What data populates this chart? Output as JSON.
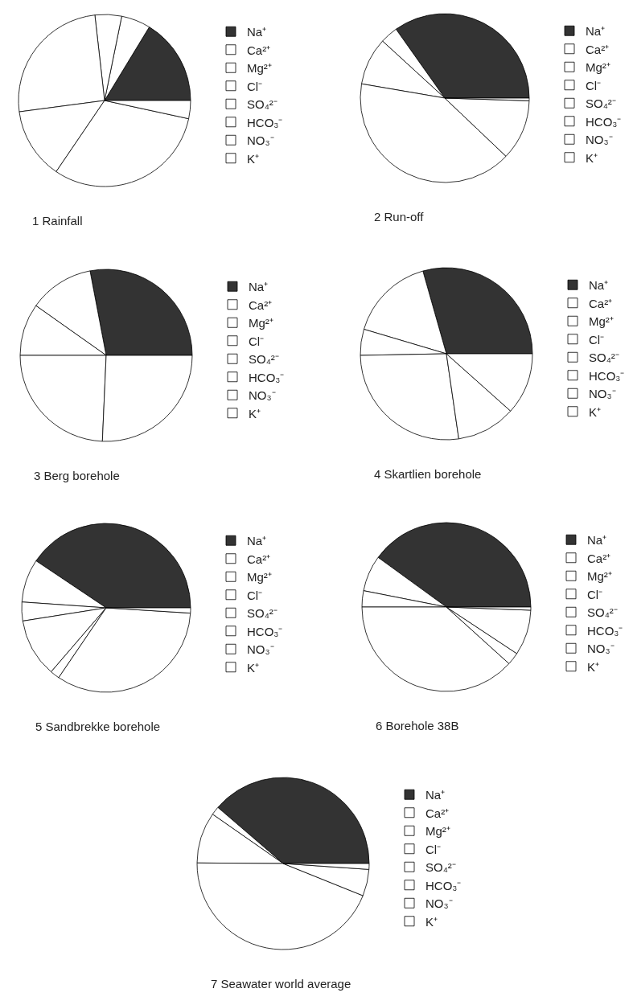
{
  "chart_data": [
    {
      "type": "pie",
      "title": "1 Rainfall",
      "legend": "right",
      "categories": [
        "Na⁺",
        "Ca²⁺",
        "Mg²⁺",
        "Cl⁻",
        "SO₄²⁻",
        "HCO₃⁻",
        "NO₃⁻",
        "K⁺"
      ],
      "values": [
        16.3,
        5.5,
        5.0,
        25.3,
        13.4,
        0,
        31.1,
        3.4
      ],
      "colors": [
        "#333333",
        "#ffffff",
        "#ffffff",
        "#ffffff",
        "#ffffff",
        "#ffffff",
        "#ffffff",
        "#ffffff"
      ]
    },
    {
      "type": "pie",
      "title": "2 Run-off",
      "legend": "right",
      "categories": [
        "Na⁺",
        "Ca²⁺",
        "Mg²⁺",
        "Cl⁻",
        "SO₄²⁻",
        "HCO₃⁻",
        "NO₃⁻",
        "K⁺"
      ],
      "values": [
        34.8,
        3.4,
        9.1,
        40.6,
        11.6,
        0,
        0,
        0.5
      ],
      "colors": [
        "#333333",
        "#ffffff",
        "#ffffff",
        "#ffffff",
        "#ffffff",
        "#ffffff",
        "#ffffff",
        "#ffffff"
      ]
    },
    {
      "type": "pie",
      "title": "3 Berg borehole",
      "legend": "right",
      "categories": [
        "Na⁺",
        "Ca²⁺",
        "Mg²⁺",
        "Cl⁻",
        "SO₄²⁻",
        "HCO₃⁻",
        "NO₃⁻",
        "K⁺"
      ],
      "values": [
        28.0,
        12.2,
        9.8,
        24.3,
        25.7,
        0,
        0,
        0
      ],
      "colors": [
        "#333333",
        "#ffffff",
        "#ffffff",
        "#ffffff",
        "#ffffff",
        "#ffffff",
        "#ffffff",
        "#ffffff"
      ]
    },
    {
      "type": "pie",
      "title": "4 Skartlien borehole",
      "legend": "right",
      "categories": [
        "Na⁺",
        "Ca²⁺",
        "Mg²⁺",
        "Cl⁻",
        "SO₄²⁻",
        "HCO₃⁻",
        "NO₃⁻",
        "K⁺"
      ],
      "values": [
        29.4,
        16.0,
        4.9,
        27.0,
        11.1,
        11.6,
        0,
        0
      ],
      "colors": [
        "#333333",
        "#ffffff",
        "#ffffff",
        "#ffffff",
        "#ffffff",
        "#ffffff",
        "#ffffff",
        "#ffffff"
      ]
    },
    {
      "type": "pie",
      "title": "5 Sandbrekke borehole",
      "legend": "right",
      "categories": [
        "Na⁺",
        "Ca²⁺",
        "Mg²⁺",
        "Cl⁻",
        "SO₄²⁻",
        "HCO₃⁻",
        "NO₃⁻",
        "K⁺"
      ],
      "values": [
        40.6,
        8.3,
        3.6,
        11.2,
        1.8,
        33.5,
        0,
        1.0
      ],
      "colors": [
        "#333333",
        "#ffffff",
        "#ffffff",
        "#ffffff",
        "#ffffff",
        "#ffffff",
        "#ffffff",
        "#ffffff"
      ]
    },
    {
      "type": "pie",
      "title": "6 Borehole 38B",
      "legend": "right",
      "categories": [
        "Na⁺",
        "Ca²⁺",
        "Mg²⁺",
        "Cl⁻",
        "SO₄²⁻",
        "HCO₃⁻",
        "NO₃⁻",
        "K⁺"
      ],
      "values": [
        40.0,
        6.9,
        3.1,
        38.3,
        2.4,
        8.7,
        0,
        0.6
      ],
      "colors": [
        "#333333",
        "#ffffff",
        "#ffffff",
        "#ffffff",
        "#ffffff",
        "#ffffff",
        "#ffffff",
        "#ffffff"
      ]
    },
    {
      "type": "pie",
      "title": "7 Seawater world average",
      "legend": "right",
      "categories": [
        "Na⁺",
        "Ca²⁺",
        "Mg²⁺",
        "Cl⁻",
        "SO₄²⁻",
        "HCO₃⁻",
        "NO₃⁻",
        "K⁺"
      ],
      "values": [
        38.7,
        1.6,
        9.6,
        44.0,
        5.0,
        0,
        0,
        1.1
      ],
      "colors": [
        "#333333",
        "#ffffff",
        "#ffffff",
        "#ffffff",
        "#ffffff",
        "#ffffff",
        "#ffffff",
        "#ffffff"
      ]
    }
  ]
}
